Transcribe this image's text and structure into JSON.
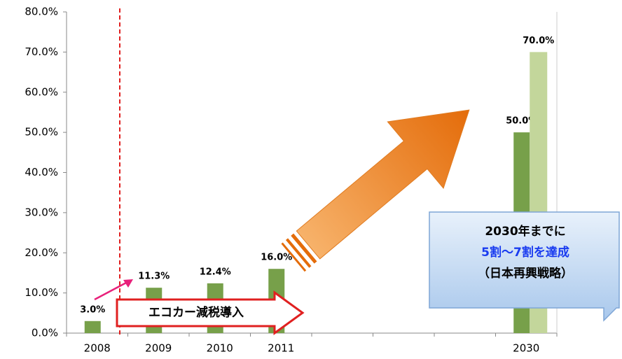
{
  "chart_data": {
    "type": "bar",
    "categories": [
      "2008",
      "2009",
      "2010",
      "2011",
      null,
      null,
      null,
      "2030"
    ],
    "series": [
      {
        "color": "#77a04a",
        "values": [
          3.0,
          11.3,
          12.4,
          16.0,
          null,
          null,
          null,
          50.0
        ],
        "value_labels": [
          "3.0%",
          "11.3%",
          "12.4%",
          "16.0%",
          null,
          null,
          null,
          "50.0%"
        ]
      },
      {
        "color": "#c3d69b",
        "values": [
          null,
          null,
          null,
          null,
          null,
          null,
          null,
          70.0
        ],
        "value_labels": [
          null,
          null,
          null,
          null,
          null,
          null,
          null,
          "70.0%"
        ]
      }
    ],
    "ylim": [
      0,
      80
    ],
    "yticks": [
      {
        "value": 0,
        "label": "0.0%"
      },
      {
        "value": 10,
        "label": "10.0%"
      },
      {
        "value": 20,
        "label": "20.0%"
      },
      {
        "value": 30,
        "label": "30.0%"
      },
      {
        "value": 40,
        "label": "40.0%"
      },
      {
        "value": 50,
        "label": "50.0%"
      },
      {
        "value": 60,
        "label": "60.0%"
      },
      {
        "value": 70,
        "label": "70.0%"
      },
      {
        "value": 80,
        "label": "80.0%"
      }
    ],
    "grid": false,
    "annotations": [
      "エコカー減税導入",
      "2030年までに",
      "5割～7割を達成",
      "（日本再興戦略）"
    ]
  }
}
